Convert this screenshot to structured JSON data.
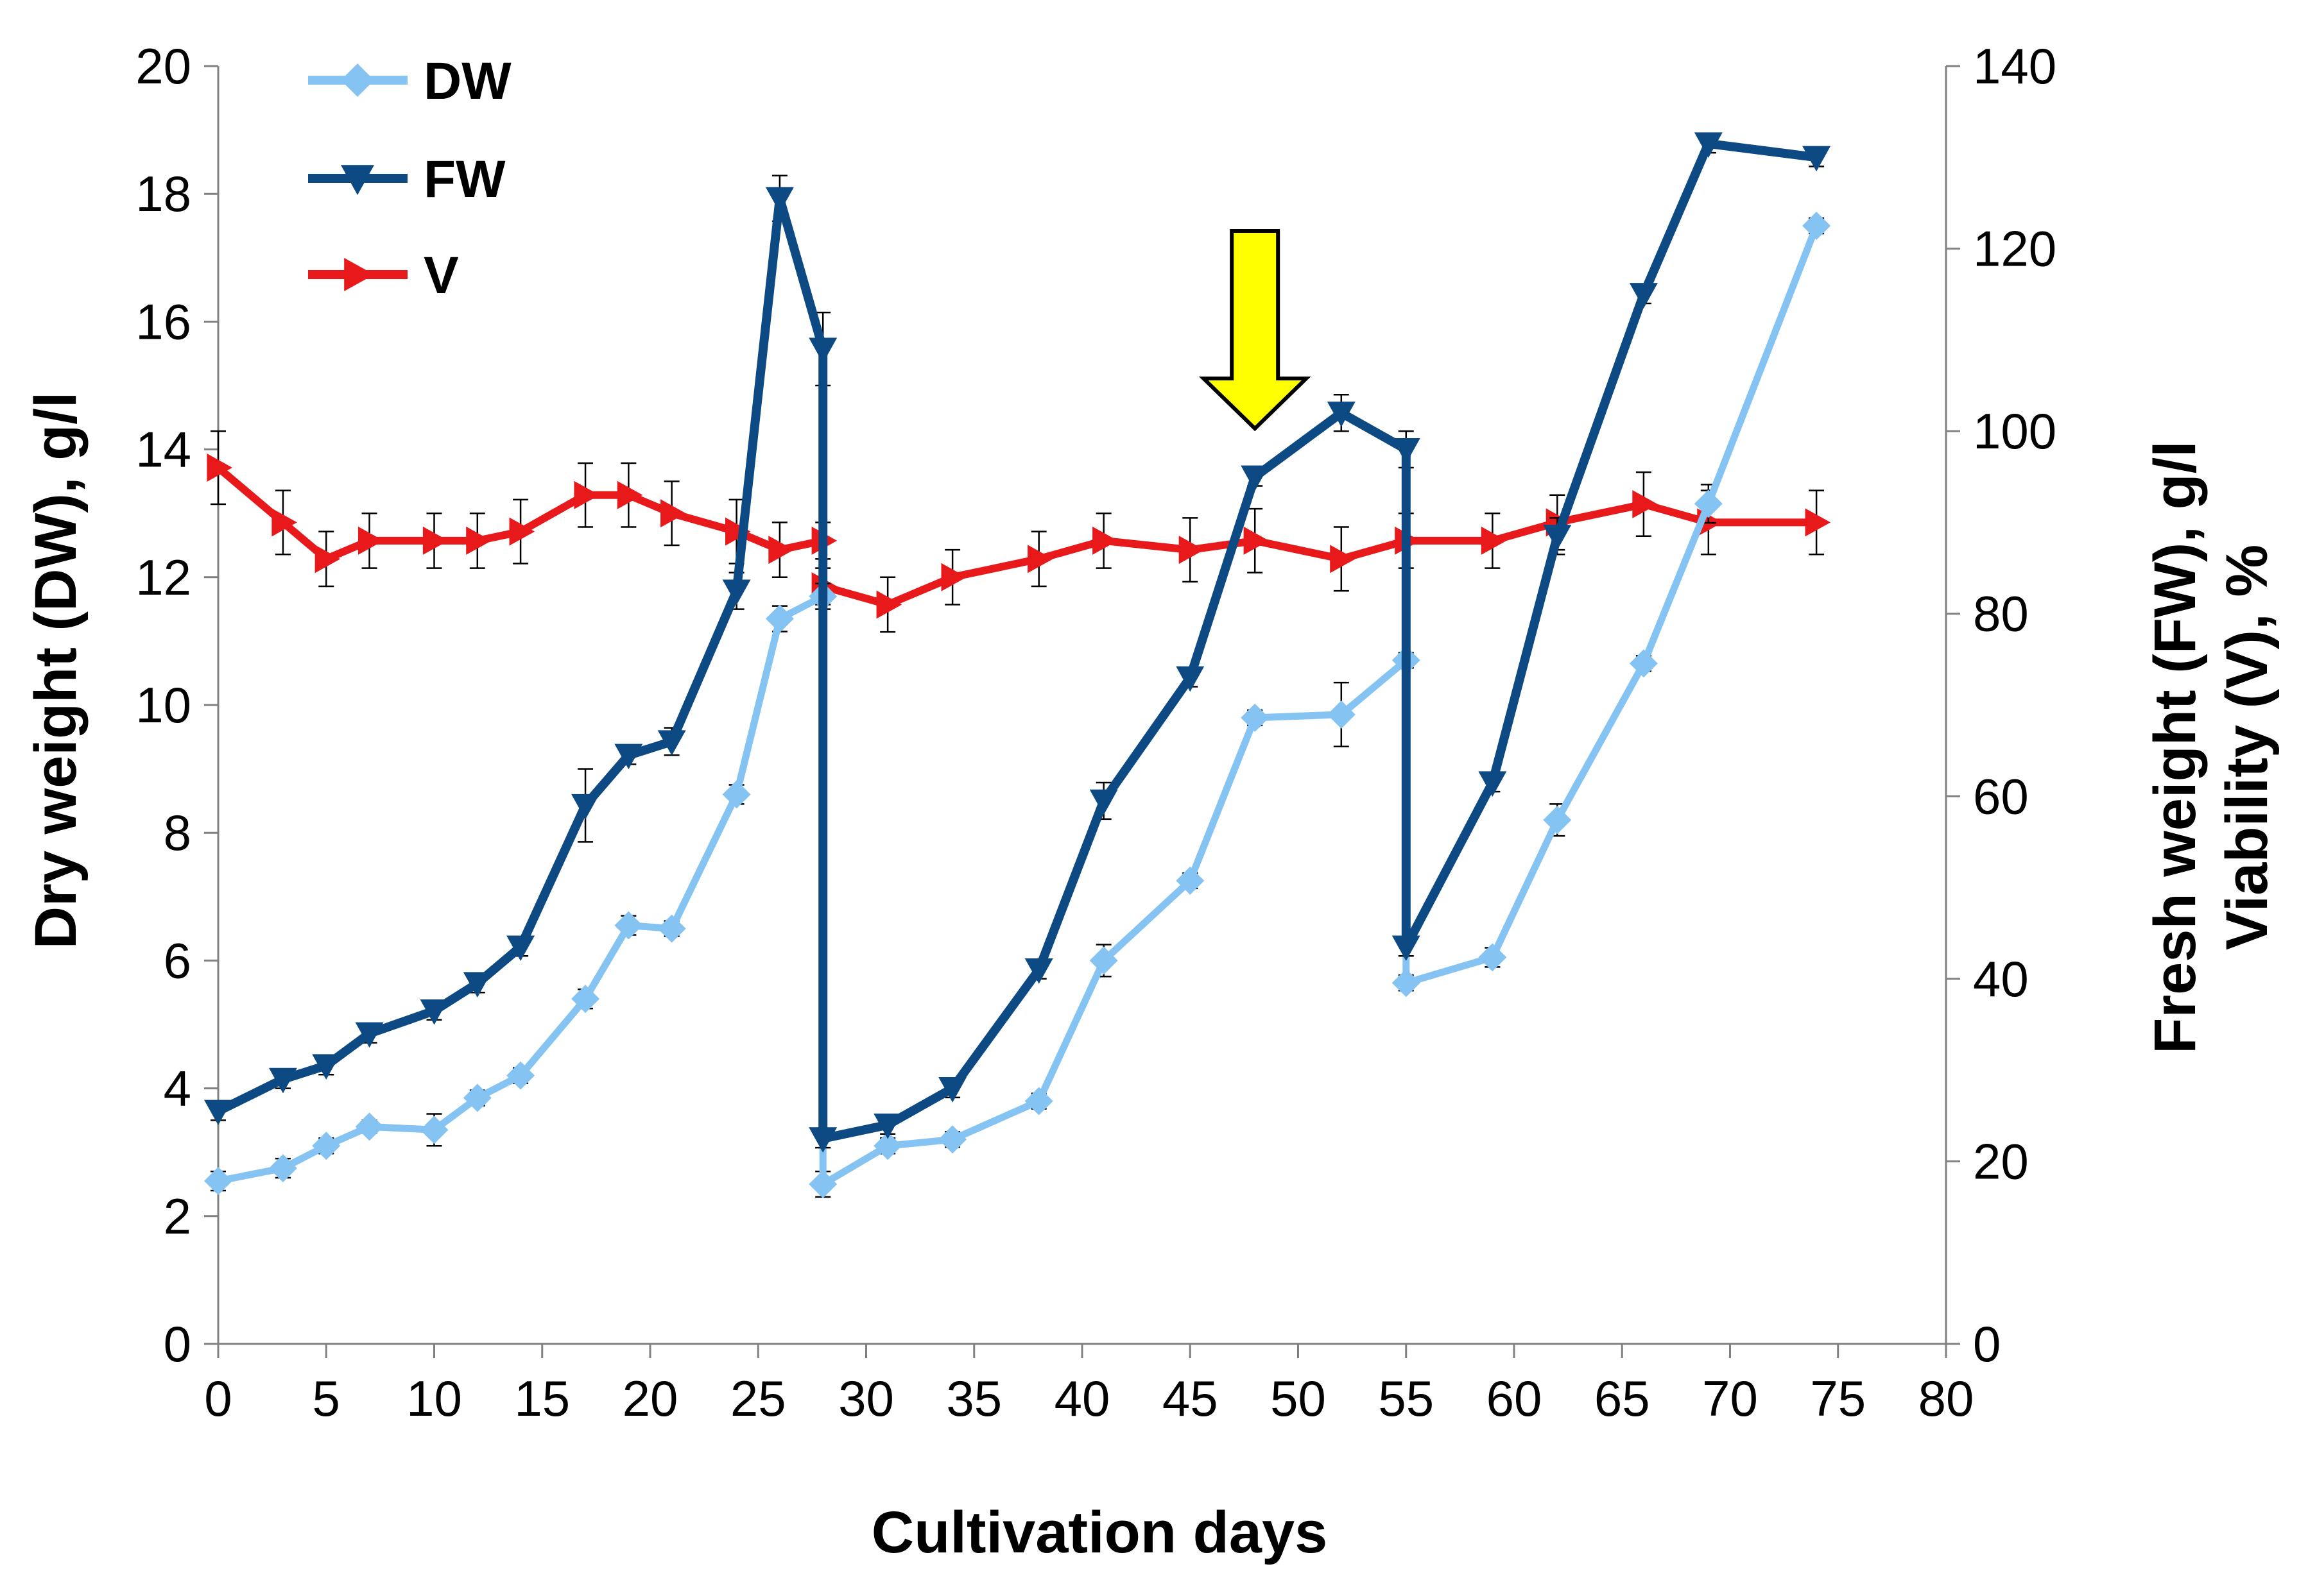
{
  "chart_data": {
    "type": "line",
    "xlabel": "Cultivation days",
    "ylabel_left": "Dry weight (DW), g/l",
    "ylabel_right_line1": "Fresh weight (FW), g/l",
    "ylabel_right_line2": "Viability (V), %",
    "xlim": [
      0,
      80
    ],
    "xticks": [
      "0",
      "5",
      "10",
      "15",
      "20",
      "25",
      "30",
      "35",
      "40",
      "45",
      "50",
      "55",
      "60",
      "65",
      "70",
      "75",
      "80"
    ],
    "ylim_left": [
      0,
      20
    ],
    "yticks_left": [
      "0",
      "2",
      "4",
      "6",
      "8",
      "10",
      "12",
      "14",
      "16",
      "18",
      "20"
    ],
    "ylim_right": [
      0,
      140
    ],
    "yticks_right": [
      "0",
      "20",
      "40",
      "60",
      "80",
      "100",
      "120",
      "140"
    ],
    "grid": false,
    "legend_position": "top-left",
    "annotation": {
      "type": "arrow",
      "x": 48,
      "color": "#ffff00"
    },
    "series": [
      {
        "name": "DW",
        "axis": "left",
        "color": "#85c4f2",
        "marker": "diamond",
        "points": [
          [
            0,
            2.55
          ],
          [
            3,
            2.75
          ],
          [
            5,
            3.1
          ],
          [
            7,
            3.4
          ],
          [
            10,
            3.35
          ],
          [
            12,
            3.85
          ],
          [
            14,
            4.2
          ],
          [
            17,
            5.4
          ],
          [
            19,
            6.55
          ],
          [
            21,
            6.5
          ],
          [
            24,
            8.6
          ],
          [
            26,
            11.35
          ],
          [
            28,
            11.7
          ],
          [
            28,
            2.5
          ],
          [
            31,
            3.1
          ],
          [
            34,
            3.2
          ],
          [
            38,
            3.8
          ],
          [
            41,
            6.0
          ],
          [
            45,
            7.25
          ],
          [
            48,
            9.8
          ],
          [
            52,
            9.85
          ],
          [
            55,
            10.7
          ],
          [
            55,
            5.65
          ],
          [
            59,
            6.05
          ],
          [
            62,
            8.2
          ],
          [
            66,
            10.65
          ],
          [
            69,
            13.15
          ],
          [
            74,
            17.5
          ]
        ],
        "errors": [
          0.15,
          0.15,
          0.12,
          0.1,
          0.25,
          0.12,
          0.12,
          0.15,
          0.15,
          0.12,
          0.15,
          0.2,
          0.2,
          0.2,
          0.12,
          0.12,
          0.12,
          0.25,
          0.12,
          0.12,
          0.5,
          0.12,
          0.12,
          0.15,
          0.25,
          0.12,
          0.3,
          0.12
        ]
      },
      {
        "name": "FW",
        "axis": "right",
        "color": "#0d4a84",
        "marker": "triangle-down",
        "points": [
          [
            0,
            25.5
          ],
          [
            3,
            29
          ],
          [
            5,
            30.5
          ],
          [
            7,
            34
          ],
          [
            10,
            36.5
          ],
          [
            12,
            39.5
          ],
          [
            14,
            43.5
          ],
          [
            17,
            59
          ],
          [
            19,
            64.5
          ],
          [
            21,
            66
          ],
          [
            24,
            82.5
          ],
          [
            26,
            125.5
          ],
          [
            28,
            109
          ],
          [
            28,
            22.5
          ],
          [
            31,
            24
          ],
          [
            34,
            28
          ],
          [
            38,
            41
          ],
          [
            41,
            59.5
          ],
          [
            45,
            73
          ],
          [
            48,
            95
          ],
          [
            52,
            102
          ],
          [
            55,
            98
          ],
          [
            55,
            43.5
          ],
          [
            59,
            61.5
          ],
          [
            62,
            88.5
          ],
          [
            66,
            115
          ],
          [
            69,
            131.5
          ],
          [
            74,
            130
          ]
        ],
        "errors": [
          1,
          1,
          1,
          1,
          1,
          1,
          1,
          4,
          1,
          1.5,
          2,
          2.5,
          4,
          1,
          1,
          1,
          1,
          2,
          1,
          1,
          2,
          2,
          1,
          1,
          2,
          1,
          1,
          1
        ]
      },
      {
        "name": "V",
        "axis": "right",
        "color": "#e8191b",
        "marker": "triangle-right",
        "points": [
          [
            0,
            96
          ],
          [
            3,
            90
          ],
          [
            5,
            86
          ],
          [
            7,
            88
          ],
          [
            10,
            88
          ],
          [
            12,
            88
          ],
          [
            14,
            89
          ],
          [
            17,
            93
          ],
          [
            19,
            93
          ],
          [
            21,
            91
          ],
          [
            24,
            89
          ],
          [
            26,
            87
          ],
          [
            28,
            88
          ],
          [
            28,
            83
          ],
          [
            31,
            81
          ],
          [
            34,
            84
          ],
          [
            38,
            86
          ],
          [
            41,
            88
          ],
          [
            45,
            87
          ],
          [
            48,
            88
          ],
          [
            52,
            86
          ],
          [
            55,
            88
          ],
          [
            59,
            88
          ],
          [
            62,
            90
          ],
          [
            66,
            92
          ],
          [
            69,
            90
          ],
          [
            74,
            90
          ]
        ],
        "errors": [
          4,
          3.5,
          3,
          3,
          3,
          3,
          3.5,
          3.5,
          3.5,
          3.5,
          3.5,
          3,
          2,
          2,
          3,
          3,
          3,
          3,
          3.5,
          3.5,
          3.5,
          3,
          3,
          3,
          3.5,
          3.5,
          3.5
        ]
      }
    ]
  }
}
